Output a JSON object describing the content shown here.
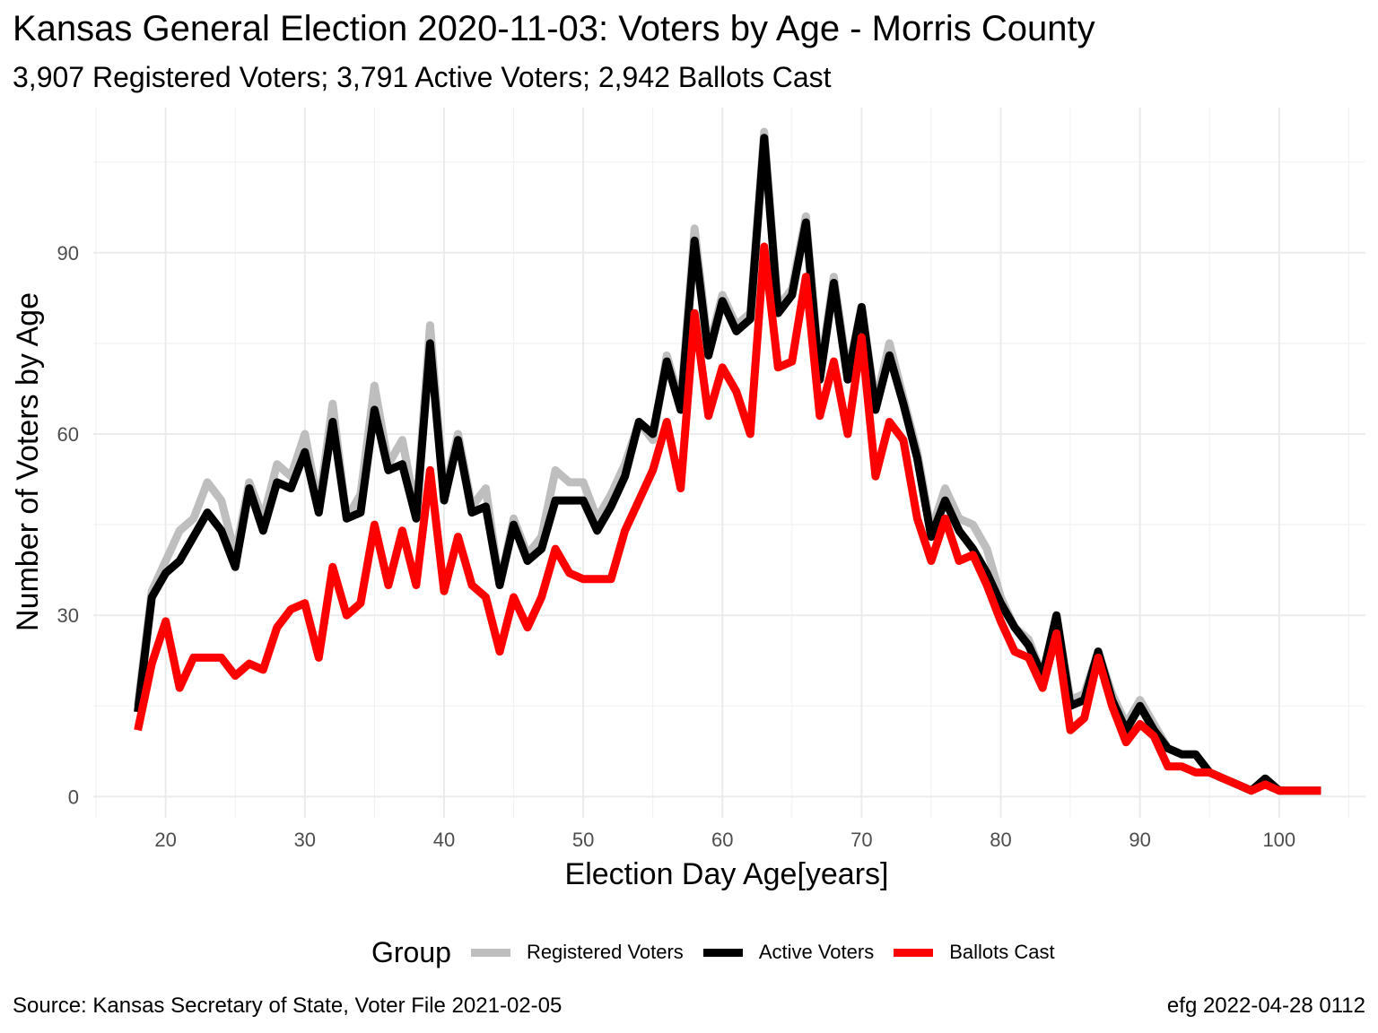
{
  "title": "Kansas General Election 2020-11-03:  Voters by Age - Morris County",
  "subtitle": "3,907 Registered Voters; 3,791 Active Voters; 2,942 Ballots Cast",
  "caption_left": "Source:  Kansas Secretary of State, Voter File  2021-02-05",
  "caption_right": "efg 2022-04-28 0112",
  "chart_data": {
    "type": "line",
    "xlabel": "Election Day Age[years]",
    "ylabel": "Number of Voters by Age",
    "xlim": [
      14.8,
      106.2
    ],
    "ylim": [
      -3.5,
      114
    ],
    "x_ticks": [
      20,
      30,
      40,
      50,
      60,
      70,
      80,
      90,
      100
    ],
    "y_ticks": [
      0,
      30,
      60,
      90
    ],
    "grid": true,
    "legend_title": "Group",
    "legend_position": "bottom",
    "x": [
      18,
      19,
      20,
      21,
      22,
      23,
      24,
      25,
      26,
      27,
      28,
      29,
      30,
      31,
      32,
      33,
      34,
      35,
      36,
      37,
      38,
      39,
      40,
      41,
      42,
      43,
      44,
      45,
      46,
      47,
      48,
      49,
      50,
      51,
      52,
      53,
      54,
      55,
      56,
      57,
      58,
      59,
      60,
      61,
      62,
      63,
      64,
      65,
      66,
      67,
      68,
      69,
      70,
      71,
      72,
      73,
      74,
      75,
      76,
      77,
      78,
      79,
      80,
      81,
      82,
      83,
      84,
      85,
      86,
      87,
      88,
      89,
      90,
      91,
      92,
      93,
      94,
      95,
      96,
      97,
      98,
      99,
      100,
      101,
      102,
      103
    ],
    "series": [
      {
        "name": "Registered Voters",
        "color": "#bebebe",
        "values": [
          15,
          34,
          39,
          44,
          46,
          52,
          49,
          40,
          52,
          46,
          55,
          53,
          60,
          48,
          65,
          46,
          50,
          68,
          55,
          59,
          47,
          78,
          50,
          60,
          48,
          51,
          35,
          46,
          40,
          43,
          54,
          52,
          52,
          46,
          50,
          55,
          62,
          59,
          73,
          65,
          94,
          74,
          83,
          78,
          80,
          110,
          81,
          84,
          96,
          70,
          86,
          70,
          81,
          65,
          75,
          66,
          57,
          44,
          51,
          46,
          45,
          41,
          33,
          28,
          26,
          20,
          30,
          16,
          17,
          24,
          17,
          12,
          16,
          12,
          8,
          7,
          7,
          4,
          3,
          2,
          1,
          3,
          1,
          1,
          1,
          1
        ]
      },
      {
        "name": "Active Voters",
        "color": "#000000",
        "values": [
          14,
          33,
          37,
          39,
          43,
          47,
          44,
          38,
          51,
          44,
          52,
          51,
          57,
          47,
          62,
          46,
          47,
          64,
          54,
          55,
          46,
          75,
          49,
          59,
          47,
          48,
          35,
          45,
          39,
          41,
          49,
          49,
          49,
          44,
          48,
          53,
          62,
          60,
          72,
          64,
          92,
          73,
          82,
          77,
          79,
          109,
          80,
          83,
          95,
          69,
          85,
          69,
          81,
          64,
          73,
          65,
          56,
          43,
          49,
          44,
          41,
          37,
          32,
          28,
          25,
          20,
          30,
          15,
          16,
          24,
          16,
          11,
          15,
          11,
          8,
          7,
          7,
          4,
          3,
          2,
          1,
          3,
          1,
          1,
          1,
          1
        ]
      },
      {
        "name": "Ballots Cast",
        "color": "#ff0000",
        "values": [
          11,
          22,
          29,
          18,
          23,
          23,
          23,
          20,
          22,
          21,
          28,
          31,
          32,
          23,
          38,
          30,
          32,
          45,
          35,
          44,
          35,
          54,
          34,
          43,
          35,
          33,
          24,
          33,
          28,
          33,
          41,
          37,
          36,
          36,
          36,
          44,
          49,
          54,
          62,
          51,
          80,
          63,
          71,
          67,
          60,
          91,
          71,
          72,
          86,
          63,
          72,
          60,
          76,
          53,
          62,
          59,
          46,
          39,
          46,
          39,
          40,
          35,
          29,
          24,
          23,
          18,
          27,
          11,
          13,
          23,
          15,
          9,
          12,
          10,
          5,
          5,
          4,
          4,
          3,
          2,
          1,
          2,
          1,
          1,
          1,
          1
        ]
      }
    ]
  }
}
